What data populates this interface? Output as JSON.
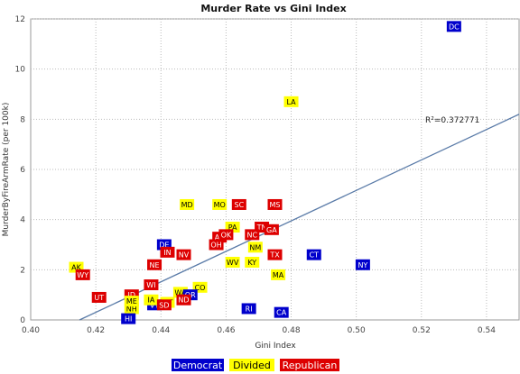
{
  "chart_data": {
    "type": "scatter",
    "title": "Murder Rate vs Gini Index",
    "xlabel": "Gini Index",
    "ylabel": "MurderByFireArmRate  (per 100k)",
    "xlim": [
      0.4,
      0.55
    ],
    "ylim": [
      0,
      12
    ],
    "x_ticks": [
      0.4,
      0.42,
      0.44,
      0.46,
      0.48,
      0.5,
      0.52,
      0.54
    ],
    "y_ticks": [
      0,
      2,
      4,
      6,
      8,
      10,
      12
    ],
    "grid": true,
    "fit_line": {
      "x": [
        0.415,
        0.55
      ],
      "y": [
        0.0,
        8.2
      ],
      "label": "R²=0.372771"
    },
    "colors": {
      "Democrat": "#0000cc",
      "Divided": "#ffff00",
      "Republican": "#dd0000"
    },
    "legend": [
      "Democrat",
      "Divided",
      "Republican"
    ],
    "legend_position": "bottom",
    "points": [
      {
        "label": "DC",
        "x": 0.53,
        "y": 11.7,
        "group": "Democrat"
      },
      {
        "label": "LA",
        "x": 0.48,
        "y": 8.7,
        "group": "Divided"
      },
      {
        "label": "CT",
        "x": 0.487,
        "y": 2.6,
        "group": "Democrat"
      },
      {
        "label": "NY",
        "x": 0.502,
        "y": 2.2,
        "group": "Democrat"
      },
      {
        "label": "MS",
        "x": 0.475,
        "y": 4.6,
        "group": "Republican"
      },
      {
        "label": "SC",
        "x": 0.464,
        "y": 4.6,
        "group": "Republican"
      },
      {
        "label": "MD",
        "x": 0.448,
        "y": 4.6,
        "group": "Divided"
      },
      {
        "label": "MO",
        "x": 0.458,
        "y": 4.6,
        "group": "Divided"
      },
      {
        "label": "TN",
        "x": 0.471,
        "y": 3.7,
        "group": "Republican"
      },
      {
        "label": "GA",
        "x": 0.474,
        "y": 3.6,
        "group": "Republican"
      },
      {
        "label": "PA",
        "x": 0.462,
        "y": 3.7,
        "group": "Divided"
      },
      {
        "label": "AZ",
        "x": 0.458,
        "y": 3.3,
        "group": "Republican"
      },
      {
        "label": "OK",
        "x": 0.46,
        "y": 3.4,
        "group": "Republican"
      },
      {
        "label": "NC",
        "x": 0.468,
        "y": 3.4,
        "group": "Republican"
      },
      {
        "label": "OH",
        "x": 0.457,
        "y": 3.0,
        "group": "Republican"
      },
      {
        "label": "NM",
        "x": 0.469,
        "y": 2.9,
        "group": "Divided"
      },
      {
        "label": "TX",
        "x": 0.475,
        "y": 2.6,
        "group": "Republican"
      },
      {
        "label": "WV",
        "x": 0.462,
        "y": 2.3,
        "group": "Divided"
      },
      {
        "label": "KY",
        "x": 0.468,
        "y": 2.3,
        "group": "Divided"
      },
      {
        "label": "MA",
        "x": 0.476,
        "y": 1.8,
        "group": "Divided"
      },
      {
        "label": "DE",
        "x": 0.441,
        "y": 3.0,
        "group": "Democrat"
      },
      {
        "label": "IN",
        "x": 0.442,
        "y": 2.7,
        "group": "Republican"
      },
      {
        "label": "NV",
        "x": 0.447,
        "y": 2.6,
        "group": "Republican"
      },
      {
        "label": "NE",
        "x": 0.438,
        "y": 2.2,
        "group": "Republican"
      },
      {
        "label": "AK",
        "x": 0.414,
        "y": 2.1,
        "group": "Divided"
      },
      {
        "label": "WY",
        "x": 0.416,
        "y": 1.8,
        "group": "Republican"
      },
      {
        "label": "WI",
        "x": 0.437,
        "y": 1.4,
        "group": "Republican"
      },
      {
        "label": "CO",
        "x": 0.452,
        "y": 1.3,
        "group": "Divided"
      },
      {
        "label": "WA",
        "x": 0.446,
        "y": 1.1,
        "group": "Divided"
      },
      {
        "label": "OR",
        "x": 0.449,
        "y": 1.0,
        "group": "Democrat"
      },
      {
        "label": "UT",
        "x": 0.421,
        "y": 0.9,
        "group": "Republican"
      },
      {
        "label": "ID",
        "x": 0.431,
        "y": 1.0,
        "group": "Republican"
      },
      {
        "label": "ND",
        "x": 0.447,
        "y": 0.8,
        "group": "Republican"
      },
      {
        "label": "MT",
        "x": 0.442,
        "y": 0.7,
        "group": "Divided"
      },
      {
        "label": "VT",
        "x": 0.438,
        "y": 0.6,
        "group": "Democrat"
      },
      {
        "label": "IA",
        "x": 0.437,
        "y": 0.8,
        "group": "Divided"
      },
      {
        "label": "SD",
        "x": 0.441,
        "y": 0.6,
        "group": "Republican"
      },
      {
        "label": "NH",
        "x": 0.431,
        "y": 0.45,
        "group": "Divided"
      },
      {
        "label": "ME",
        "x": 0.431,
        "y": 0.75,
        "group": "Divided"
      },
      {
        "label": "HI",
        "x": 0.43,
        "y": 0.05,
        "group": "Democrat"
      },
      {
        "label": "RI",
        "x": 0.467,
        "y": 0.45,
        "group": "Democrat"
      },
      {
        "label": "CA",
        "x": 0.477,
        "y": 0.3,
        "group": "Democrat"
      }
    ]
  }
}
